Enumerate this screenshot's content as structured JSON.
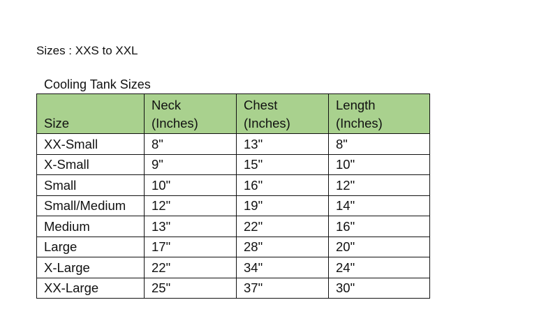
{
  "sizes_line": "Sizes : XXS to XXL",
  "caption": "Cooling Tank Sizes",
  "header_color": "#a9d18e",
  "headers": [
    [
      "",
      "Size"
    ],
    [
      "Neck",
      "(Inches)"
    ],
    [
      "Chest",
      "(Inches)"
    ],
    [
      "Length",
      "(Inches)"
    ]
  ],
  "rows": [
    [
      "XX-Small",
      "8\"",
      "13\"",
      "8\""
    ],
    [
      "X-Small",
      "9\"",
      "15\"",
      "10\""
    ],
    [
      "Small",
      "10\"",
      "16\"",
      "12\""
    ],
    [
      "Small/Medium",
      "12\"",
      "19\"",
      "14\""
    ],
    [
      "Medium",
      "13\"",
      "22\"",
      "16\""
    ],
    [
      "Large",
      "17\"",
      "28\"",
      "20\""
    ],
    [
      "X-Large",
      "22\"",
      "34\"",
      "24\""
    ],
    [
      "XX-Large",
      "25\"",
      "37\"",
      "30\""
    ]
  ]
}
